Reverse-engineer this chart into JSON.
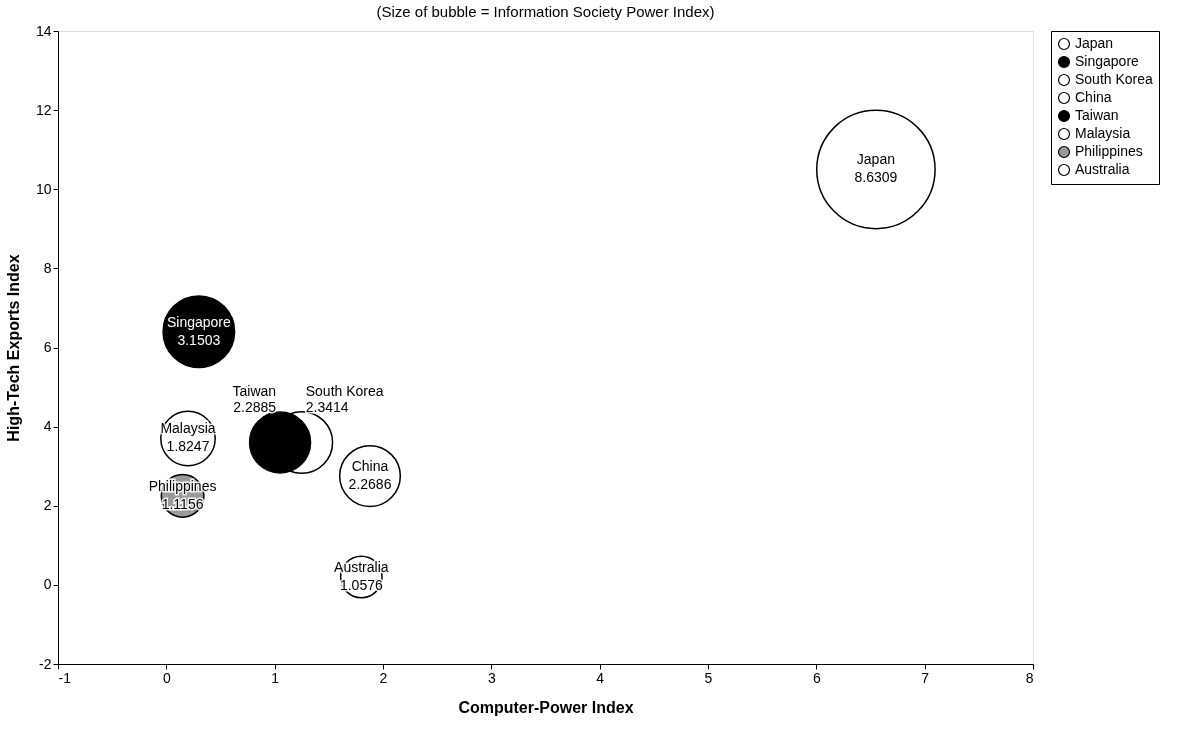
{
  "chart_data": {
    "type": "bubble",
    "title": "(Size of bubble = Information Society Power Index)",
    "xlabel": "Computer-Power Index",
    "ylabel": "High-Tech Exports Index",
    "xlim": [
      -1,
      8
    ],
    "xticks": [
      -1,
      0,
      1,
      2,
      3,
      4,
      5,
      6,
      7,
      8
    ],
    "ylim": [
      -2,
      14
    ],
    "yticks": [
      -2,
      0,
      2,
      4,
      6,
      8,
      10,
      12,
      14
    ],
    "grid": false,
    "legend": "right",
    "marker": "circle",
    "series": [
      {
        "name": "Japan",
        "color": "#ffffff",
        "x": [
          6.55
        ],
        "values": [
          10.5
        ],
        "sizes": [
          8.6309
        ],
        "value_labels": [
          "8.6309"
        ]
      },
      {
        "name": "Singapore",
        "color": "#000000",
        "x": [
          0.3
        ],
        "values": [
          6.4
        ],
        "sizes": [
          3.1503
        ],
        "value_labels": [
          "3.1503"
        ]
      },
      {
        "name": "South Korea",
        "color": "#ffffff",
        "x": [
          1.25
        ],
        "values": [
          3.6
        ],
        "sizes": [
          2.3414
        ],
        "value_labels": [
          "2.3414"
        ]
      },
      {
        "name": "China",
        "color": "#ffffff",
        "x": [
          1.88
        ],
        "values": [
          2.75
        ],
        "sizes": [
          2.2686
        ],
        "value_labels": [
          "2.2686"
        ]
      },
      {
        "name": "Taiwan",
        "color": "#000000",
        "x": [
          1.05
        ],
        "values": [
          3.6
        ],
        "sizes": [
          2.2885
        ],
        "value_labels": [
          "2.2885"
        ]
      },
      {
        "name": "Malaysia",
        "color": "#ffffff",
        "x": [
          0.2
        ],
        "values": [
          3.7
        ],
        "sizes": [
          1.8247
        ],
        "value_labels": [
          "1.8247"
        ]
      },
      {
        "name": "Philippines",
        "color": "#999999",
        "x": [
          0.15
        ],
        "values": [
          2.25
        ],
        "sizes": [
          1.1156
        ],
        "value_labels": [
          "1.1156"
        ]
      },
      {
        "name": "Australia",
        "color": "#ffffff",
        "x": [
          1.8
        ],
        "values": [
          0.2
        ],
        "sizes": [
          1.0576
        ],
        "value_labels": [
          "1.0576"
        ]
      }
    ]
  }
}
